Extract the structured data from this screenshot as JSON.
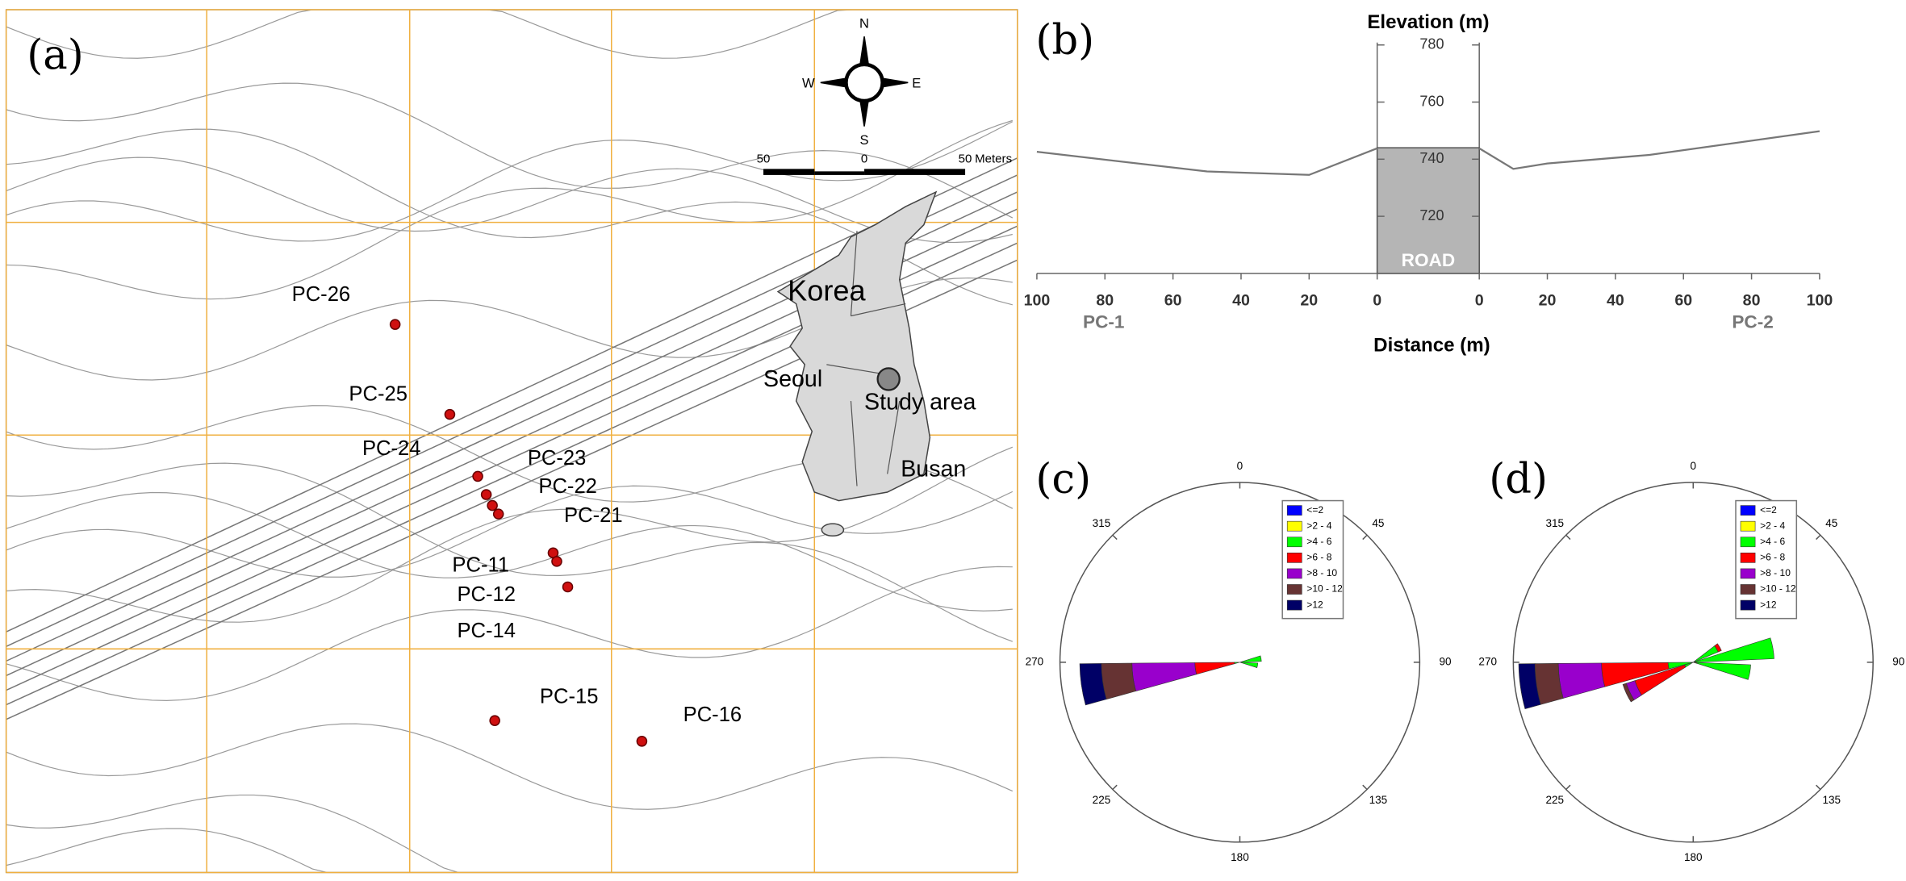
{
  "map": {
    "panel": "(a)",
    "compass": [
      "N",
      "E",
      "S",
      "W"
    ],
    "scale": [
      "50",
      "0",
      "50",
      "Meters"
    ],
    "places": [
      "Korea",
      "Seoul",
      "Study area",
      "Busan"
    ],
    "sites": [
      "PC-26",
      "PC-25",
      "PC-24",
      "PC-23",
      "PC-22",
      "PC-21",
      "PC-11",
      "PC-12",
      "PC-14",
      "PC-15",
      "PC-16"
    ]
  },
  "profile": {
    "panel": "(b)",
    "title": "Elevation (m)",
    "xlabel": "Distance (m)",
    "ylim": [
      700,
      780
    ],
    "yticks": [
      720,
      740,
      760,
      780
    ],
    "road": {
      "label": "ROAD",
      "value": 744
    },
    "sides": [
      {
        "name": "PC-1",
        "xlim": [
          100,
          0
        ],
        "xticks": [
          100,
          80,
          60,
          40,
          20,
          0
        ],
        "x": [
          100,
          50,
          20,
          0
        ],
        "values": [
          742.6,
          735.7,
          734.5,
          743.8
        ]
      },
      {
        "name": "PC-2",
        "xlim": [
          0,
          100
        ],
        "xticks": [
          0,
          20,
          40,
          60,
          80,
          100
        ],
        "x": [
          0,
          10,
          20,
          50,
          100
        ],
        "values": [
          743.8,
          736.6,
          738.5,
          741.5,
          749.8
        ]
      }
    ]
  },
  "roses": [
    {
      "panel": "(c)",
      "angles": [
        0,
        45,
        90,
        135,
        180,
        225,
        270,
        315
      ],
      "rlim": 100,
      "width": 15,
      "directions": [
        80,
        100,
        262
      ],
      "series": [
        {
          "name": "<=2",
          "color": "#0000ff",
          "values": [
            0,
            0,
            0
          ]
        },
        {
          "name": ">2 - 4",
          "color": "#ffff00",
          "values": [
            0,
            0,
            0
          ]
        },
        {
          "name": ">4 - 6",
          "color": "#00ff00",
          "values": [
            12,
            10,
            3
          ]
        },
        {
          "name": ">6 - 8",
          "color": "#ff0000",
          "values": [
            0,
            0,
            22
          ]
        },
        {
          "name": ">8 - 10",
          "color": "#9900cc",
          "values": [
            0,
            0,
            35
          ]
        },
        {
          "name": ">10 - 12",
          "color": "#663333",
          "values": [
            0,
            0,
            17
          ]
        },
        {
          "name": ">12",
          "color": "#000066",
          "values": [
            0,
            0,
            12
          ]
        }
      ]
    },
    {
      "panel": "(d)",
      "angles": [
        0,
        45,
        90,
        135,
        180,
        225,
        270,
        315
      ],
      "rlim": 100,
      "width": 15,
      "directions": [
        60,
        80,
        100,
        245,
        262
      ],
      "series": [
        {
          "name": "<=2",
          "color": "#0000ff",
          "values": [
            0,
            0,
            0,
            0,
            0
          ]
        },
        {
          "name": ">2 - 4",
          "color": "#ffff00",
          "values": [
            0,
            0,
            2,
            0,
            0
          ]
        },
        {
          "name": ">4 - 6",
          "color": "#00ff00",
          "values": [
            15,
            45,
            30,
            5,
            14
          ]
        },
        {
          "name": ">6 - 8",
          "color": "#ff0000",
          "values": [
            2,
            0,
            0,
            29,
            37
          ]
        },
        {
          "name": ">8 - 10",
          "color": "#9900cc",
          "values": [
            0,
            0,
            0,
            5,
            24
          ]
        },
        {
          "name": ">10 - 12",
          "color": "#663333",
          "values": [
            0,
            0,
            0,
            2,
            13
          ]
        },
        {
          "name": ">12",
          "color": "#000066",
          "values": [
            0,
            0,
            0,
            0,
            9
          ]
        }
      ]
    }
  ]
}
